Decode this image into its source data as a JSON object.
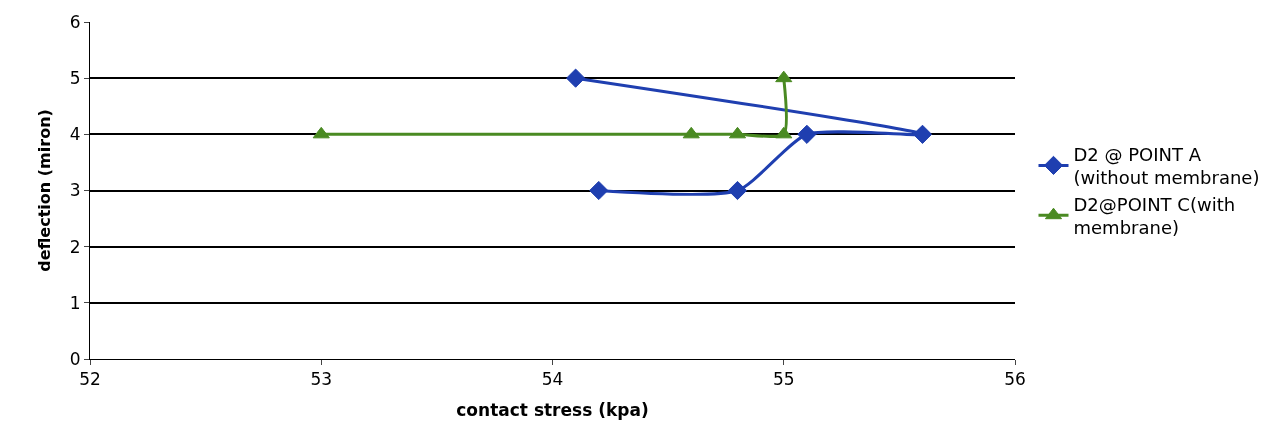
{
  "chart_data": {
    "type": "line",
    "xlabel": "contact stress (kpa)",
    "ylabel": "deflection (miron)",
    "xlim": [
      52,
      56
    ],
    "xticks": [
      52,
      53,
      54,
      55,
      56
    ],
    "ylim": [
      0,
      6
    ],
    "yticks": [
      0,
      1,
      2,
      3,
      4,
      5,
      6
    ],
    "grid": "y",
    "legend": "right",
    "series": [
      {
        "name": "D2 @ POINT A (without membrane)",
        "color": "#1f3fb0",
        "marker": "diamond",
        "x": [
          54.1,
          55.6,
          55.1,
          54.8,
          54.2
        ],
        "values": [
          5,
          4,
          4,
          3,
          3
        ]
      },
      {
        "name": "D2@POINT C(with membrane)",
        "color": "#4a8a22",
        "marker": "triangle",
        "x": [
          53,
          54.6,
          54.8,
          55,
          55
        ],
        "values": [
          4,
          4,
          4,
          4,
          5
        ]
      }
    ]
  }
}
